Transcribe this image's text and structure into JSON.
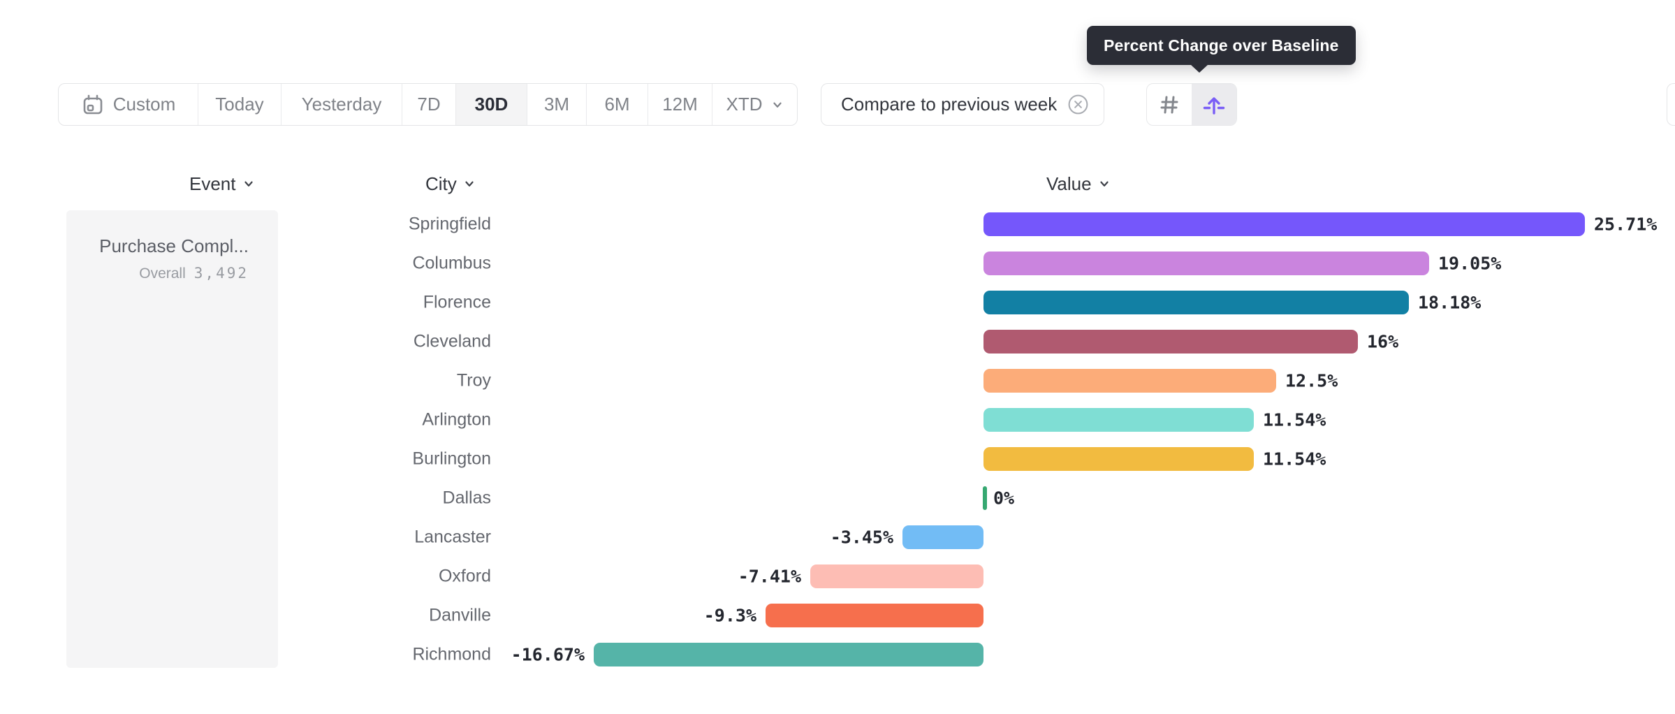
{
  "tooltip": {
    "text": "Percent Change over Baseline"
  },
  "date_ranges": {
    "selected": "30D",
    "items": [
      {
        "label": "Custom"
      },
      {
        "label": "Today"
      },
      {
        "label": "Yesterday"
      },
      {
        "label": "7D"
      },
      {
        "label": "30D"
      },
      {
        "label": "3M"
      },
      {
        "label": "6M"
      },
      {
        "label": "12M"
      },
      {
        "label": "XTD"
      }
    ]
  },
  "compare": {
    "label": "Compare to previous week"
  },
  "view_toggle": {
    "buttons": [
      {
        "name": "grid-view",
        "active": false
      },
      {
        "name": "percent-change-over-baseline",
        "active": true
      }
    ]
  },
  "columns": {
    "event": "Event",
    "city": "City",
    "value": "Value"
  },
  "event_card": {
    "name": "Purchase Compl...",
    "overall_label": "Overall",
    "overall_value": "3,492"
  },
  "chart_data": {
    "type": "bar",
    "orientation": "horizontal",
    "title": "Percent Change over Baseline",
    "xlabel": "Value",
    "ylabel": "City",
    "baseline": 0,
    "xlim": [
      -17,
      26
    ],
    "categories": [
      "Springfield",
      "Columbus",
      "Florence",
      "Cleveland",
      "Troy",
      "Arlington",
      "Burlington",
      "Dallas",
      "Lancaster",
      "Oxford",
      "Danville",
      "Richmond"
    ],
    "values": [
      25.71,
      19.05,
      18.18,
      16,
      12.5,
      11.54,
      11.54,
      0,
      -3.45,
      -7.41,
      -9.3,
      -16.67
    ],
    "value_labels": [
      "25.71%",
      "19.05%",
      "18.18%",
      "16%",
      "12.5%",
      "11.54%",
      "11.54%",
      "0%",
      "-3.45%",
      "-7.41%",
      "-9.3%",
      "-16.67%"
    ],
    "colors": [
      "#7557FB",
      "#CA84DE",
      "#1280A4",
      "#B05A70",
      "#FCAC79",
      "#7FDED4",
      "#F2BB40",
      "#36A871",
      "#72BCF5",
      "#FDBDB4",
      "#F66F4D",
      "#55B4A8"
    ]
  }
}
